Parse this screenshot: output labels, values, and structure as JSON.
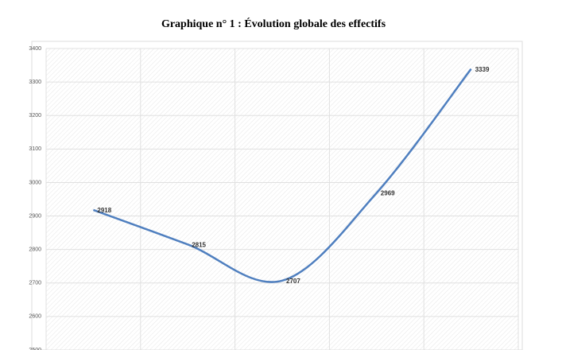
{
  "chart_data": {
    "type": "line",
    "title": "Graphique n° 1 : Évolution globale des effectifs",
    "categories": [
      null,
      null,
      null,
      null,
      null
    ],
    "series": [
      {
        "name": null,
        "color": "#4f7fbf",
        "values": [
          2918,
          2815,
          2707,
          2969,
          3339
        ]
      }
    ],
    "ylim": [
      2500,
      3400
    ],
    "yticks": [
      2500,
      2600,
      2700,
      2800,
      2900,
      3000,
      3100,
      3200,
      3300,
      3400
    ],
    "grid": true,
    "smooth": true
  }
}
